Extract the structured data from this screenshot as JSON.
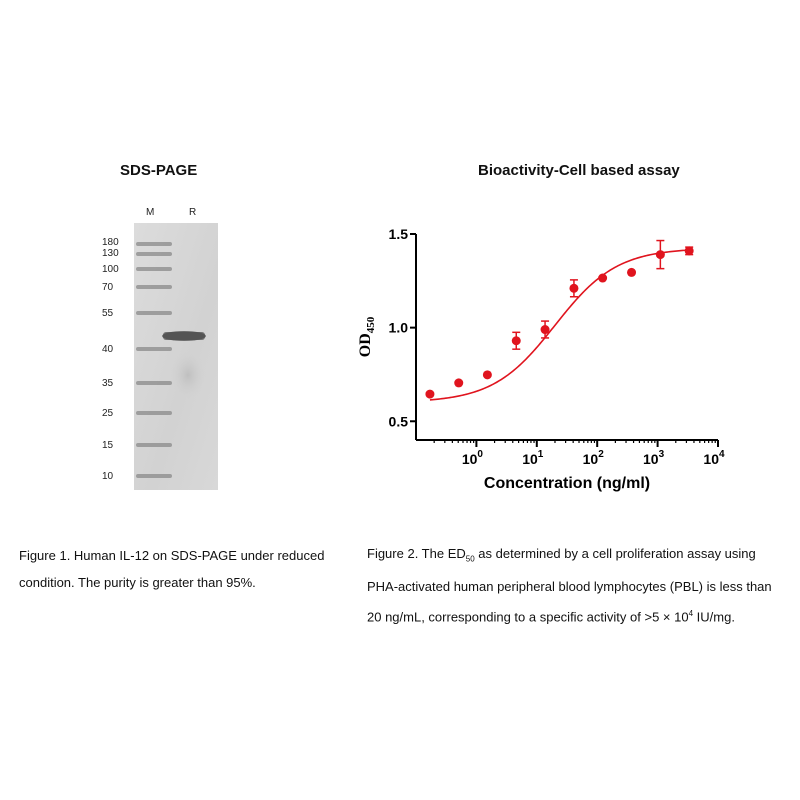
{
  "gel": {
    "title": "SDS-PAGE",
    "lanes": [
      {
        "label": "M"
      },
      {
        "label": "R"
      }
    ],
    "marker_kda": [
      "180",
      "130",
      "100",
      "70",
      "55",
      "40",
      "35",
      "25",
      "15",
      "10"
    ]
  },
  "captions": {
    "figure1": {
      "line1": "Figure 1. Human IL-12 on SDS-PAGE under reduced",
      "line2": "condition. The purity is greater than 95%."
    },
    "figure2": {
      "line1_pre": "Figure 2. The ED",
      "line1_sub": "50",
      "line1_post": " as determined by a cell proliferation assay using",
      "line2": "PHA-activated human peripheral blood lymphocytes (PBL) is less than",
      "line3_pre": "20 ng/mL, corresponding to a specific activity of >5  ×  10",
      "line3_sup": "4",
      "line3_post": " IU/mg."
    }
  },
  "chart_data": {
    "type": "scatter",
    "title": "Bioactivity-Cell based assay",
    "xlabel": "Concentration (ng/ml)",
    "ylabel": "OD",
    "ylabel_sub": "450",
    "x_scale": "log",
    "xlim": [
      0.1,
      10000
    ],
    "ylim": [
      0.4,
      1.5
    ],
    "y_ticks": [
      "0.5",
      "1.0",
      "1.5"
    ],
    "y_tick_values": [
      0.5,
      1.0,
      1.5
    ],
    "x_ticks": [
      {
        "value": 1,
        "base": "10",
        "exp": "0"
      },
      {
        "value": 10,
        "base": "10",
        "exp": "1"
      },
      {
        "value": 100,
        "base": "10",
        "exp": "2"
      },
      {
        "value": 1000,
        "base": "10",
        "exp": "3"
      },
      {
        "value": 10000,
        "base": "10",
        "exp": "4"
      }
    ],
    "color": "#e0141e",
    "points": [
      {
        "x": 0.17,
        "y": 0.645,
        "err": 0.0
      },
      {
        "x": 0.51,
        "y": 0.705,
        "err": 0.0
      },
      {
        "x": 1.52,
        "y": 0.748,
        "err": 0.0
      },
      {
        "x": 4.57,
        "y": 0.93,
        "err": 0.045
      },
      {
        "x": 13.7,
        "y": 0.99,
        "err": 0.045
      },
      {
        "x": 41.2,
        "y": 1.21,
        "err": 0.045
      },
      {
        "x": 123,
        "y": 1.265,
        "err": 0.0
      },
      {
        "x": 370,
        "y": 1.295,
        "err": 0.0
      },
      {
        "x": 1111,
        "y": 1.39,
        "err": 0.075
      },
      {
        "x": 3333,
        "y": 1.41,
        "err": 0.02
      }
    ],
    "fit": {
      "bottom": 0.6,
      "top": 1.425,
      "ec50": 20,
      "hill": 0.85
    },
    "grid": false,
    "legend": "none"
  }
}
